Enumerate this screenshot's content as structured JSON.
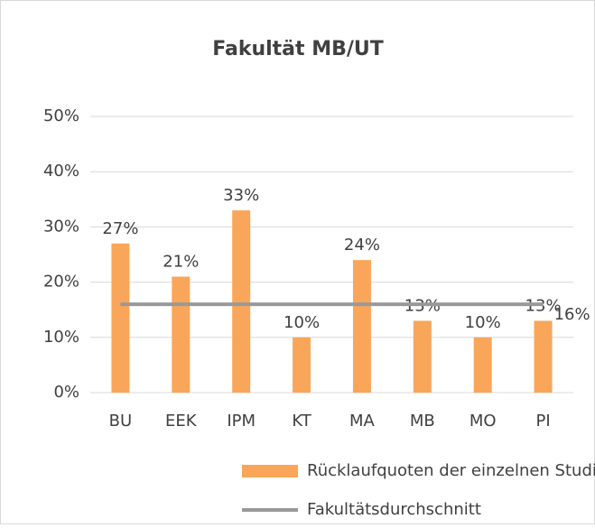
{
  "chart_data": {
    "type": "bar",
    "title": "Fakultät MB/UT",
    "categories": [
      "BU",
      "EEK",
      "IPM",
      "KT",
      "MA",
      "MB",
      "MO",
      "PI"
    ],
    "series": [
      {
        "name": "Rücklaufquoten der einzelnen Studiengänge",
        "type": "bar",
        "color": "#f9a65a",
        "values": [
          27,
          21,
          33,
          10,
          24,
          13,
          10,
          13
        ],
        "value_labels": [
          "27%",
          "21%",
          "33%",
          "10%",
          "24%",
          "13%",
          "10%",
          "13%"
        ]
      },
      {
        "name": "Fakultätsdurchschnitt",
        "type": "line",
        "color": "#999999",
        "values": [
          16,
          16,
          16,
          16,
          16,
          16,
          16,
          16
        ],
        "value_labels": [
          null,
          null,
          null,
          null,
          null,
          null,
          null,
          "16%"
        ]
      }
    ],
    "ylim": [
      0,
      50
    ],
    "yticks": [
      {
        "value": 0,
        "label": "0%"
      },
      {
        "value": 10,
        "label": "10%"
      },
      {
        "value": 20,
        "label": "20%"
      },
      {
        "value": 30,
        "label": "30%"
      },
      {
        "value": 40,
        "label": "40%"
      },
      {
        "value": 50,
        "label": "50%"
      }
    ],
    "grid": true
  }
}
